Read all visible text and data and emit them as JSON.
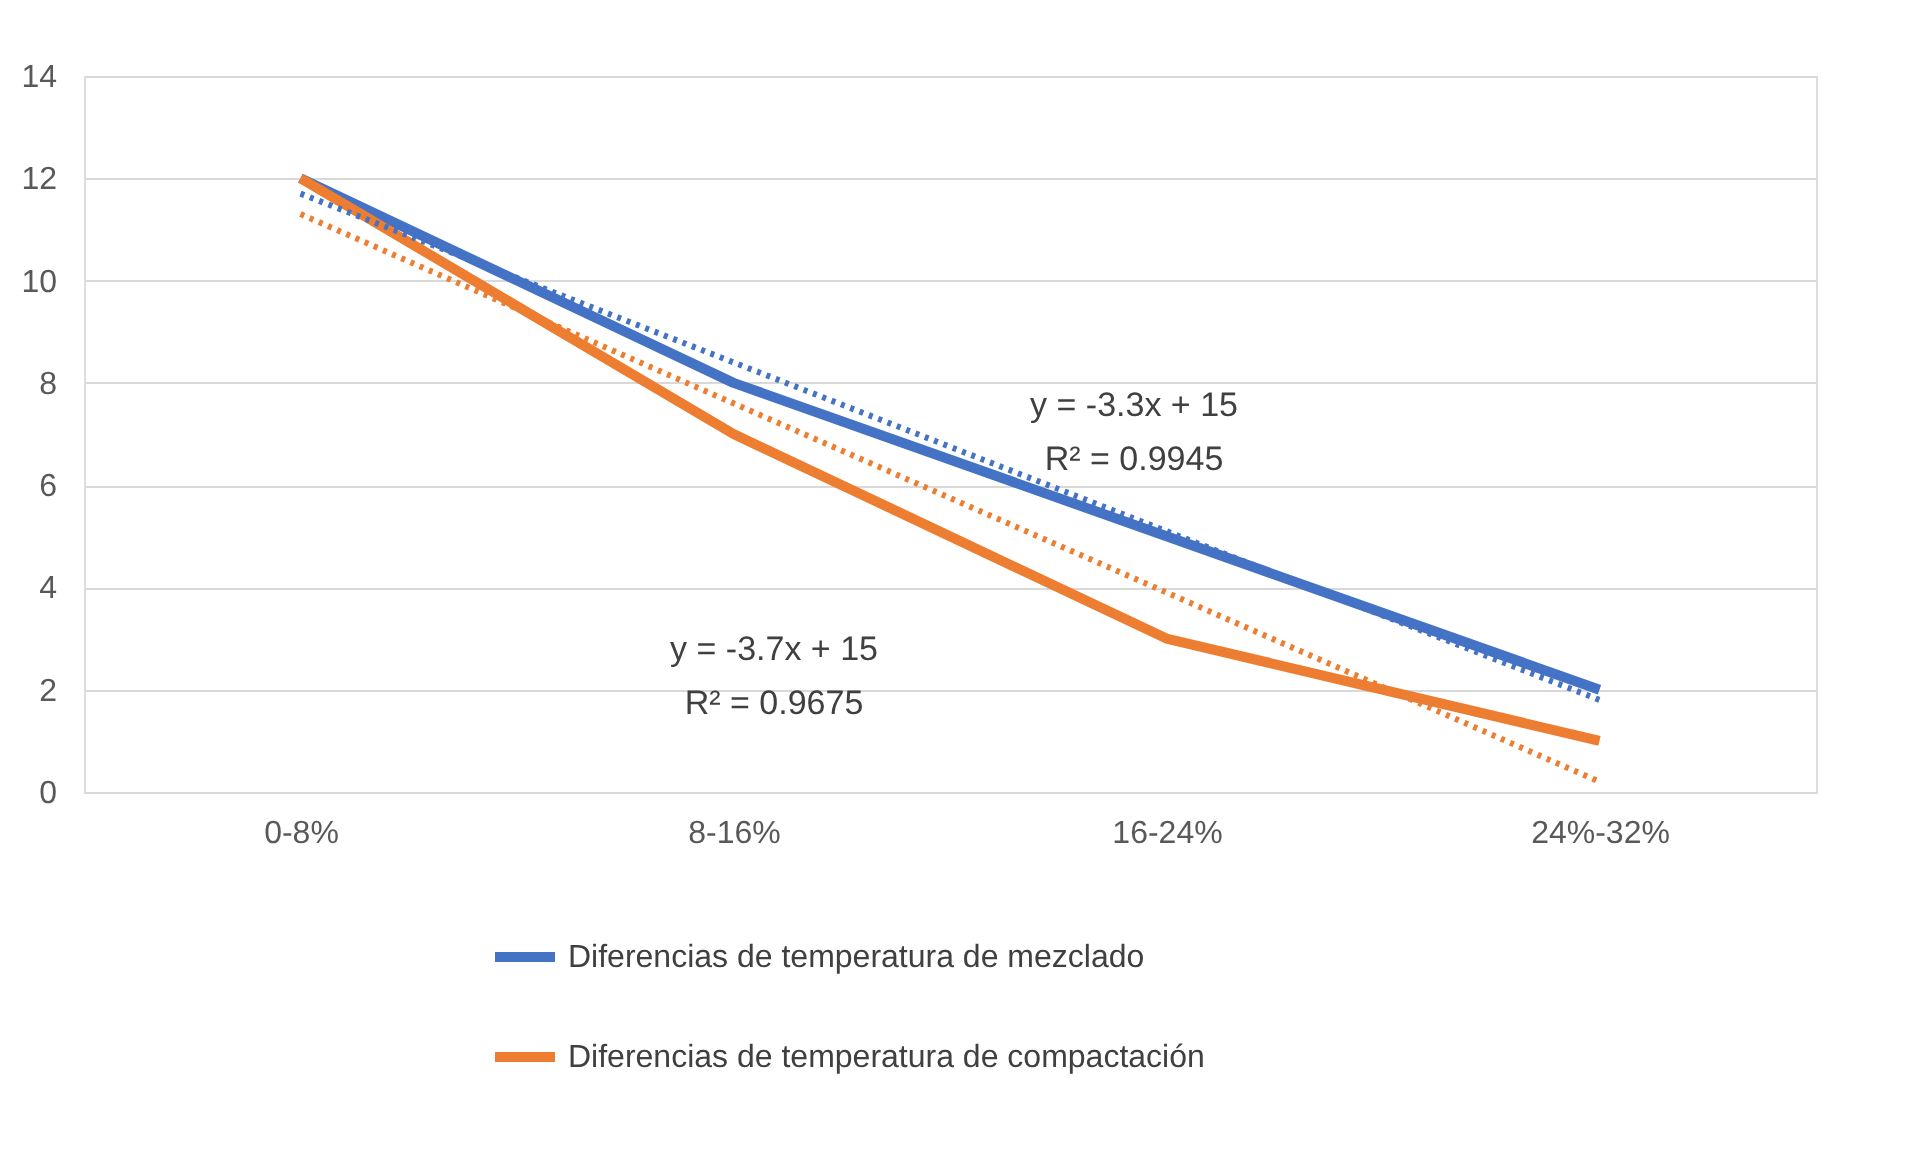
{
  "chart_data": {
    "type": "line",
    "categories": [
      "0-8%",
      "8-16%",
      "16-24%",
      "24%-32%"
    ],
    "series": [
      {
        "name": "Diferencias de temperatura de mezclado",
        "color": "#4472c4",
        "values": [
          12,
          8,
          5,
          2
        ]
      },
      {
        "name": "Diferencias de temperatura de compactación",
        "color": "#ed7d31",
        "values": [
          12,
          7,
          3,
          1
        ]
      },
      {
        "type": "line",
        "color": "#4472c4",
        "line_style": "dotted",
        "values": [
          11.7,
          8.4,
          5.1,
          1.8
        ]
      },
      {
        "type": "line",
        "color": "#ed7d31",
        "line_style": "dotted",
        "values": [
          11.3,
          7.6,
          3.9,
          0.2
        ]
      }
    ],
    "annotations": [
      "y = -3.3x + 15",
      "R² = 0.9945",
      "y = -3.7x + 15",
      "R² = 0.9675"
    ],
    "ylim": [
      0,
      14
    ],
    "yticks": [
      0,
      2,
      4,
      6,
      8,
      10,
      12,
      14
    ],
    "grid": "y",
    "legend": "bottom",
    "line_style": "solid",
    "marker": "none"
  }
}
